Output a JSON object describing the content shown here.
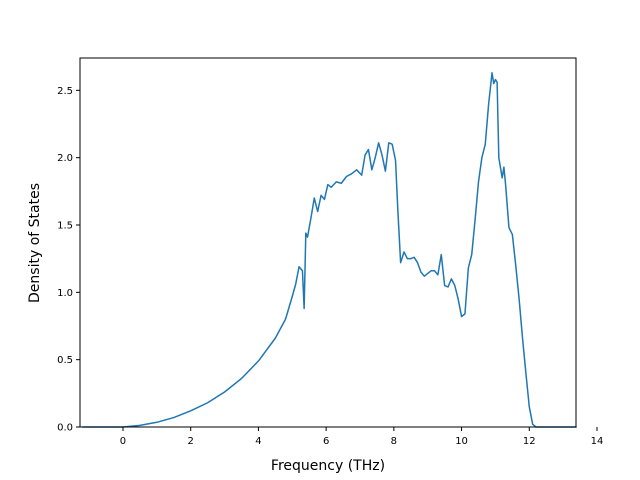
{
  "chart_data": {
    "type": "line",
    "title": "",
    "xlabel": "Frequency (THz)",
    "ylabel": "Density of States",
    "xlim": [
      -1.27,
      13.38
    ],
    "ylim": [
      0,
      2.74
    ],
    "grid": false,
    "xticks": [
      0,
      2,
      4,
      6,
      8,
      10,
      12,
      14
    ],
    "yticks": [
      0.0,
      0.5,
      1.0,
      1.5,
      2.0,
      2.5
    ],
    "xtick_labels": [
      "0",
      "2",
      "4",
      "6",
      "8",
      "10",
      "12",
      "14"
    ],
    "ytick_labels": [
      "0.0",
      "0.5",
      "1.0",
      "1.5",
      "2.0",
      "2.5"
    ],
    "series": [
      {
        "color": "#1f77b4",
        "x": [
          -1.2,
          0.0,
          0.5,
          1.0,
          1.5,
          2.0,
          2.5,
          3.0,
          3.5,
          4.0,
          4.5,
          4.8,
          5.0,
          5.1,
          5.2,
          5.3,
          5.35,
          5.4,
          5.45,
          5.55,
          5.65,
          5.75,
          5.85,
          5.95,
          6.05,
          6.15,
          6.3,
          6.45,
          6.6,
          6.75,
          6.9,
          7.05,
          7.15,
          7.25,
          7.35,
          7.45,
          7.55,
          7.65,
          7.75,
          7.85,
          7.95,
          8.05,
          8.12,
          8.2,
          8.3,
          8.4,
          8.5,
          8.6,
          8.7,
          8.8,
          8.9,
          9.0,
          9.1,
          9.2,
          9.3,
          9.4,
          9.5,
          9.6,
          9.7,
          9.8,
          9.9,
          10.0,
          10.1,
          10.2,
          10.3,
          10.4,
          10.5,
          10.6,
          10.7,
          10.8,
          10.9,
          10.95,
          11.0,
          11.05,
          11.1,
          11.2,
          11.25,
          11.3,
          11.4,
          11.5,
          11.6,
          11.7,
          11.8,
          11.9,
          12.0,
          12.1,
          12.2,
          12.5,
          13.0,
          13.4
        ],
        "y": [
          0.0,
          0.0,
          0.012,
          0.035,
          0.07,
          0.12,
          0.18,
          0.26,
          0.36,
          0.49,
          0.66,
          0.8,
          0.97,
          1.06,
          1.19,
          1.16,
          0.88,
          1.44,
          1.41,
          1.55,
          1.7,
          1.6,
          1.72,
          1.69,
          1.8,
          1.78,
          1.82,
          1.81,
          1.86,
          1.88,
          1.91,
          1.87,
          2.02,
          2.06,
          1.91,
          2.0,
          2.11,
          2.02,
          1.9,
          2.11,
          2.1,
          1.98,
          1.6,
          1.22,
          1.3,
          1.25,
          1.25,
          1.26,
          1.22,
          1.15,
          1.12,
          1.14,
          1.16,
          1.16,
          1.13,
          1.28,
          1.05,
          1.04,
          1.1,
          1.05,
          0.95,
          0.82,
          0.84,
          1.18,
          1.28,
          1.54,
          1.82,
          2.0,
          2.1,
          2.4,
          2.63,
          2.55,
          2.58,
          2.56,
          2.0,
          1.85,
          1.93,
          1.8,
          1.48,
          1.43,
          1.2,
          0.95,
          0.66,
          0.4,
          0.15,
          0.02,
          0.0,
          0.0,
          0.0,
          0.0
        ]
      }
    ]
  }
}
